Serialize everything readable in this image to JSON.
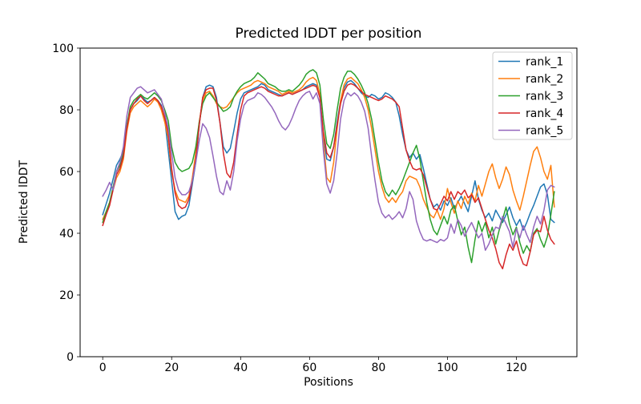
{
  "figure": {
    "background": "#ffffff",
    "axes_color": "#000000",
    "legend_border_color": "#cccccc",
    "legend_background": "#ffffff"
  },
  "chart_data": {
    "type": "line",
    "title": "Predicted lDDT per position",
    "xlabel": "Positions",
    "ylabel": "Predicted lDDT",
    "xlim": [
      -6.55,
      137.55
    ],
    "ylim": [
      0,
      100
    ],
    "x_ticks": [
      0,
      20,
      40,
      60,
      80,
      100,
      120
    ],
    "y_ticks": [
      0,
      20,
      40,
      60,
      80,
      100
    ],
    "grid": false,
    "legend_position": "upper right",
    "x_start": 0,
    "x_step": 1,
    "series": [
      {
        "name": "rank_1",
        "color": "#1f77b4",
        "values": [
          46.0,
          49.5,
          53.0,
          57.5,
          62.0,
          64.0,
          66.5,
          74.0,
          80.0,
          82.0,
          83.0,
          84.5,
          83.5,
          82.5,
          83.0,
          84.0,
          83.0,
          81.5,
          77.0,
          67.0,
          57.0,
          47.0,
          44.5,
          45.5,
          46.0,
          49.0,
          56.0,
          63.0,
          75.0,
          84.0,
          87.5,
          88.0,
          87.5,
          84.0,
          76.0,
          68.0,
          66.0,
          67.5,
          73.0,
          79.0,
          83.5,
          85.5,
          86.0,
          86.5,
          87.0,
          87.5,
          88.5,
          88.0,
          86.5,
          86.0,
          85.5,
          85.0,
          84.5,
          85.0,
          85.5,
          85.0,
          85.5,
          86.0,
          86.5,
          87.5,
          88.0,
          88.5,
          88.0,
          84.0,
          72.0,
          64.0,
          63.5,
          68.0,
          76.0,
          83.0,
          87.0,
          89.0,
          89.5,
          88.5,
          87.0,
          85.5,
          84.5,
          84.0,
          85.0,
          84.5,
          83.5,
          84.0,
          85.5,
          85.0,
          84.0,
          82.5,
          78.0,
          72.0,
          67.0,
          64.5,
          66.0,
          64.0,
          65.5,
          61.0,
          56.0,
          51.0,
          48.5,
          49.5,
          47.5,
          50.5,
          49.0,
          51.5,
          48.0,
          50.0,
          52.0,
          49.5,
          47.0,
          52.0,
          57.0,
          51.0,
          47.5,
          45.0,
          46.5,
          44.0,
          47.5,
          45.5,
          43.5,
          46.0,
          48.5,
          45.0,
          42.5,
          44.5,
          41.0,
          43.5,
          46.5,
          49.0,
          52.0,
          55.0,
          56.0,
          52.5,
          44.5,
          43.5
        ]
      },
      {
        "name": "rank_2",
        "color": "#ff7f0e",
        "values": [
          44.5,
          47.0,
          50.0,
          54.0,
          58.0,
          60.0,
          64.0,
          73.0,
          79.0,
          81.0,
          82.0,
          83.0,
          82.0,
          81.0,
          82.0,
          83.5,
          82.5,
          80.0,
          76.0,
          71.0,
          60.0,
          54.0,
          51.0,
          50.5,
          50.0,
          52.0,
          58.0,
          66.0,
          76.0,
          83.0,
          85.5,
          86.0,
          84.5,
          82.0,
          81.0,
          80.5,
          81.0,
          82.5,
          84.0,
          85.5,
          86.5,
          87.0,
          87.5,
          88.0,
          89.0,
          89.5,
          89.0,
          88.5,
          87.5,
          87.0,
          86.5,
          86.0,
          85.0,
          85.5,
          86.0,
          85.5,
          86.0,
          86.5,
          87.5,
          89.0,
          90.0,
          90.5,
          89.5,
          85.0,
          70.0,
          58.0,
          56.5,
          63.0,
          74.0,
          83.0,
          88.0,
          90.0,
          90.5,
          89.5,
          88.5,
          86.5,
          84.0,
          80.0,
          74.0,
          67.0,
          60.0,
          55.0,
          51.5,
          50.0,
          51.5,
          50.0,
          52.0,
          53.5,
          57.0,
          58.5,
          58.0,
          57.5,
          55.0,
          51.0,
          48.5,
          46.0,
          45.0,
          47.5,
          44.5,
          48.0,
          54.5,
          50.0,
          46.5,
          50.5,
          48.0,
          52.0,
          49.5,
          53.0,
          50.5,
          55.5,
          52.0,
          56.0,
          60.0,
          62.5,
          58.0,
          54.5,
          57.5,
          61.5,
          59.0,
          54.0,
          50.5,
          47.5,
          52.0,
          57.0,
          62.0,
          66.5,
          68.0,
          64.5,
          60.0,
          57.5,
          62.0,
          48.5
        ]
      },
      {
        "name": "rank_3",
        "color": "#2ca02c",
        "values": [
          43.5,
          47.0,
          50.0,
          55.0,
          60.0,
          62.0,
          66.0,
          75.0,
          81.0,
          83.0,
          84.0,
          85.0,
          84.0,
          83.5,
          84.5,
          85.5,
          84.5,
          83.0,
          80.0,
          76.5,
          68.0,
          63.0,
          61.0,
          60.0,
          60.5,
          61.0,
          63.0,
          68.0,
          76.0,
          82.0,
          84.5,
          85.5,
          84.0,
          82.5,
          81.0,
          79.5,
          80.0,
          81.0,
          84.0,
          86.0,
          87.5,
          88.5,
          89.0,
          89.5,
          90.5,
          92.0,
          91.0,
          90.0,
          88.5,
          88.0,
          87.5,
          86.5,
          86.0,
          86.0,
          86.5,
          86.0,
          87.0,
          88.0,
          89.5,
          91.5,
          92.5,
          93.0,
          92.0,
          88.0,
          77.0,
          69.0,
          67.5,
          72.0,
          80.0,
          87.0,
          90.5,
          92.5,
          92.5,
          91.5,
          90.0,
          88.0,
          85.5,
          82.0,
          77.0,
          70.0,
          63.0,
          57.0,
          53.5,
          52.0,
          54.0,
          52.5,
          54.5,
          57.0,
          60.0,
          63.0,
          66.0,
          68.5,
          64.0,
          57.0,
          50.0,
          44.5,
          41.0,
          39.5,
          42.5,
          45.5,
          43.0,
          47.5,
          49.0,
          44.0,
          39.5,
          42.0,
          35.5,
          30.5,
          38.0,
          44.0,
          40.5,
          43.5,
          38.5,
          42.0,
          36.5,
          41.0,
          44.5,
          48.5,
          43.0,
          39.5,
          42.0,
          37.0,
          33.5,
          36.0,
          34.0,
          40.0,
          41.5,
          38.0,
          35.5,
          39.0,
          46.0,
          53.5
        ]
      },
      {
        "name": "rank_4",
        "color": "#d62728",
        "values": [
          42.5,
          46.0,
          49.0,
          54.0,
          59.0,
          61.0,
          65.0,
          74.0,
          80.0,
          82.0,
          83.5,
          84.5,
          83.0,
          82.0,
          83.0,
          84.0,
          83.0,
          81.0,
          77.5,
          72.5,
          61.0,
          53.0,
          49.0,
          48.0,
          48.5,
          51.0,
          57.0,
          64.0,
          75.0,
          84.0,
          86.5,
          87.0,
          87.0,
          83.0,
          76.0,
          66.0,
          59.5,
          58.0,
          63.0,
          72.0,
          80.0,
          84.5,
          85.5,
          86.0,
          86.5,
          87.0,
          87.5,
          87.0,
          86.0,
          85.5,
          85.0,
          84.5,
          84.5,
          85.0,
          85.5,
          85.0,
          85.5,
          86.0,
          86.5,
          87.0,
          87.5,
          88.0,
          87.5,
          84.0,
          73.0,
          66.0,
          64.5,
          68.0,
          75.0,
          82.0,
          86.0,
          88.0,
          88.5,
          88.0,
          87.0,
          86.0,
          85.0,
          84.5,
          84.0,
          83.5,
          83.0,
          83.5,
          84.5,
          84.0,
          83.5,
          82.5,
          81.0,
          74.0,
          67.0,
          63.5,
          61.0,
          60.5,
          61.0,
          59.0,
          55.0,
          51.0,
          48.0,
          47.5,
          49.5,
          52.0,
          50.5,
          53.5,
          51.0,
          53.5,
          52.5,
          54.0,
          51.5,
          52.5,
          50.0,
          51.5,
          48.0,
          44.5,
          41.0,
          38.5,
          35.0,
          30.5,
          28.5,
          33.0,
          36.5,
          34.5,
          37.5,
          33.0,
          30.0,
          29.5,
          34.0,
          39.5,
          41.0,
          40.5,
          45.5,
          41.0,
          38.0,
          36.5
        ]
      },
      {
        "name": "rank_5",
        "color": "#9467bd",
        "values": [
          52.0,
          54.0,
          56.5,
          54.0,
          60.0,
          63.0,
          68.0,
          78.0,
          84.0,
          85.5,
          87.0,
          87.5,
          86.5,
          85.5,
          86.0,
          86.5,
          85.0,
          83.5,
          79.0,
          74.0,
          66.0,
          58.0,
          54.0,
          52.5,
          52.5,
          53.5,
          57.0,
          63.0,
          70.0,
          75.5,
          74.0,
          71.0,
          65.0,
          58.5,
          53.5,
          52.5,
          57.0,
          54.0,
          60.0,
          70.0,
          77.0,
          81.5,
          83.0,
          83.5,
          84.0,
          85.5,
          85.0,
          84.0,
          82.5,
          81.0,
          79.0,
          76.5,
          74.5,
          73.5,
          75.0,
          77.5,
          80.5,
          83.0,
          84.5,
          85.5,
          86.0,
          83.5,
          85.5,
          82.0,
          67.0,
          56.0,
          53.0,
          57.0,
          66.0,
          77.0,
          83.0,
          85.5,
          84.5,
          85.5,
          84.5,
          82.5,
          79.5,
          74.0,
          65.0,
          57.0,
          50.0,
          46.5,
          45.0,
          46.0,
          44.5,
          45.5,
          47.0,
          45.0,
          48.0,
          53.5,
          51.0,
          44.0,
          40.5,
          38.0,
          37.5,
          38.0,
          37.5,
          37.0,
          38.0,
          37.5,
          38.5,
          43.0,
          40.0,
          44.5,
          42.5,
          39.0,
          41.5,
          43.5,
          41.0,
          38.5,
          40.0,
          34.5,
          36.5,
          39.5,
          42.0,
          41.5,
          45.5,
          43.0,
          40.5,
          35.5,
          41.5,
          38.5,
          42.5,
          39.5,
          37.0,
          42.0,
          45.5,
          43.0,
          47.5,
          54.0,
          55.5,
          55.0
        ]
      }
    ]
  }
}
